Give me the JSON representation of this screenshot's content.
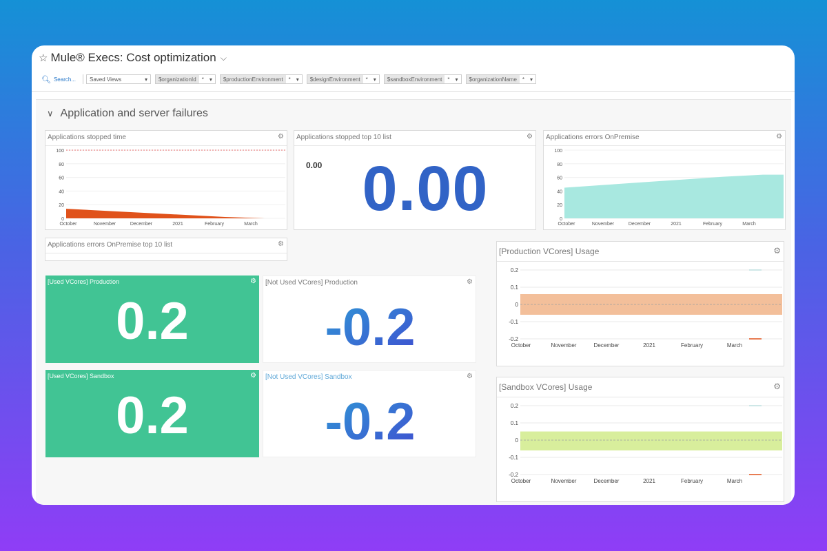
{
  "header": {
    "title": "Mule® Execs: Cost optimization"
  },
  "filters": {
    "search_label": "Search...",
    "saved_views": "Saved Views",
    "variables": [
      {
        "name": "$organizationId",
        "value": "*"
      },
      {
        "name": "$productionEnvironment",
        "value": "*"
      },
      {
        "name": "$designEnvironment",
        "value": "*"
      },
      {
        "name": "$sandboxEnvironment",
        "value": "*"
      },
      {
        "name": "$organizationName",
        "value": "*"
      }
    ]
  },
  "section": {
    "title": "Application and server failures"
  },
  "widgets": {
    "stopped_time": {
      "title": "Applications stopped time"
    },
    "stopped_top": {
      "title": "Applications stopped top 10 list",
      "small_value": "0.00",
      "big_value": "0.00"
    },
    "errors_onprem": {
      "title": "Applications errors OnPremise"
    },
    "errors_top": {
      "title": "Applications errors OnPremise top 10 list"
    },
    "used_prod": {
      "title": "[Used VCores] Production",
      "value": "0.2"
    },
    "not_used_prod": {
      "title": "[Not Used VCores] Production",
      "value": "-0.2"
    },
    "used_sandbox": {
      "title": "[Used VCores] Sandbox",
      "value": "0.2"
    },
    "not_used_sandbox": {
      "title": "[Not Used VCores] Sandbox",
      "value": "-0.2"
    },
    "prod_usage": {
      "title": "[Production VCores] Usage"
    },
    "sandbox_usage": {
      "title": "[Sandbox VCores] Usage"
    }
  },
  "chart_data": [
    {
      "type": "area",
      "title": "Applications stopped time",
      "x": [
        "October",
        "November",
        "December",
        "2021",
        "February",
        "March"
      ],
      "yticks": [
        0,
        20,
        40,
        60,
        80,
        100
      ],
      "ylim": [
        0,
        100
      ],
      "threshold": 100,
      "series": [
        {
          "values": [
            14,
            11,
            8,
            5,
            2,
            0
          ],
          "color": "#e0521b"
        }
      ]
    },
    {
      "type": "area",
      "title": "Applications errors OnPremise",
      "x": [
        "October",
        "November",
        "December",
        "2021",
        "February",
        "March"
      ],
      "yticks": [
        0,
        20,
        40,
        60,
        80,
        100
      ],
      "ylim": [
        0,
        100
      ],
      "series": [
        {
          "values": [
            45,
            49,
            53,
            57,
            61,
            64
          ],
          "color": "#a8e8e0"
        }
      ]
    },
    {
      "type": "area",
      "title": "[Production VCores] Usage",
      "x": [
        "October",
        "November",
        "December",
        "2021",
        "February",
        "March"
      ],
      "yticks": [
        "0.2",
        "0.1",
        "0",
        "-0.1",
        "-0.2"
      ],
      "ylim": [
        -0.2,
        0.2
      ],
      "band": [
        -0.06,
        0.06
      ],
      "band_color": "#f3bf9a"
    },
    {
      "type": "area",
      "title": "[Sandbox VCores] Usage",
      "x": [
        "October",
        "November",
        "December",
        "2021",
        "February",
        "March"
      ],
      "yticks": [
        "0.2",
        "0.1",
        "0",
        "-0.1",
        "-0.2"
      ],
      "ylim": [
        -0.2,
        0.2
      ],
      "band": [
        -0.06,
        0.05
      ],
      "band_color": "#d8ee9c"
    }
  ],
  "colors": {
    "green_tile": "#41c494",
    "big_number_blue": "#3163c6",
    "gradient_number_start": "#2f9ad6",
    "gradient_number_end": "#3f4fd0"
  }
}
